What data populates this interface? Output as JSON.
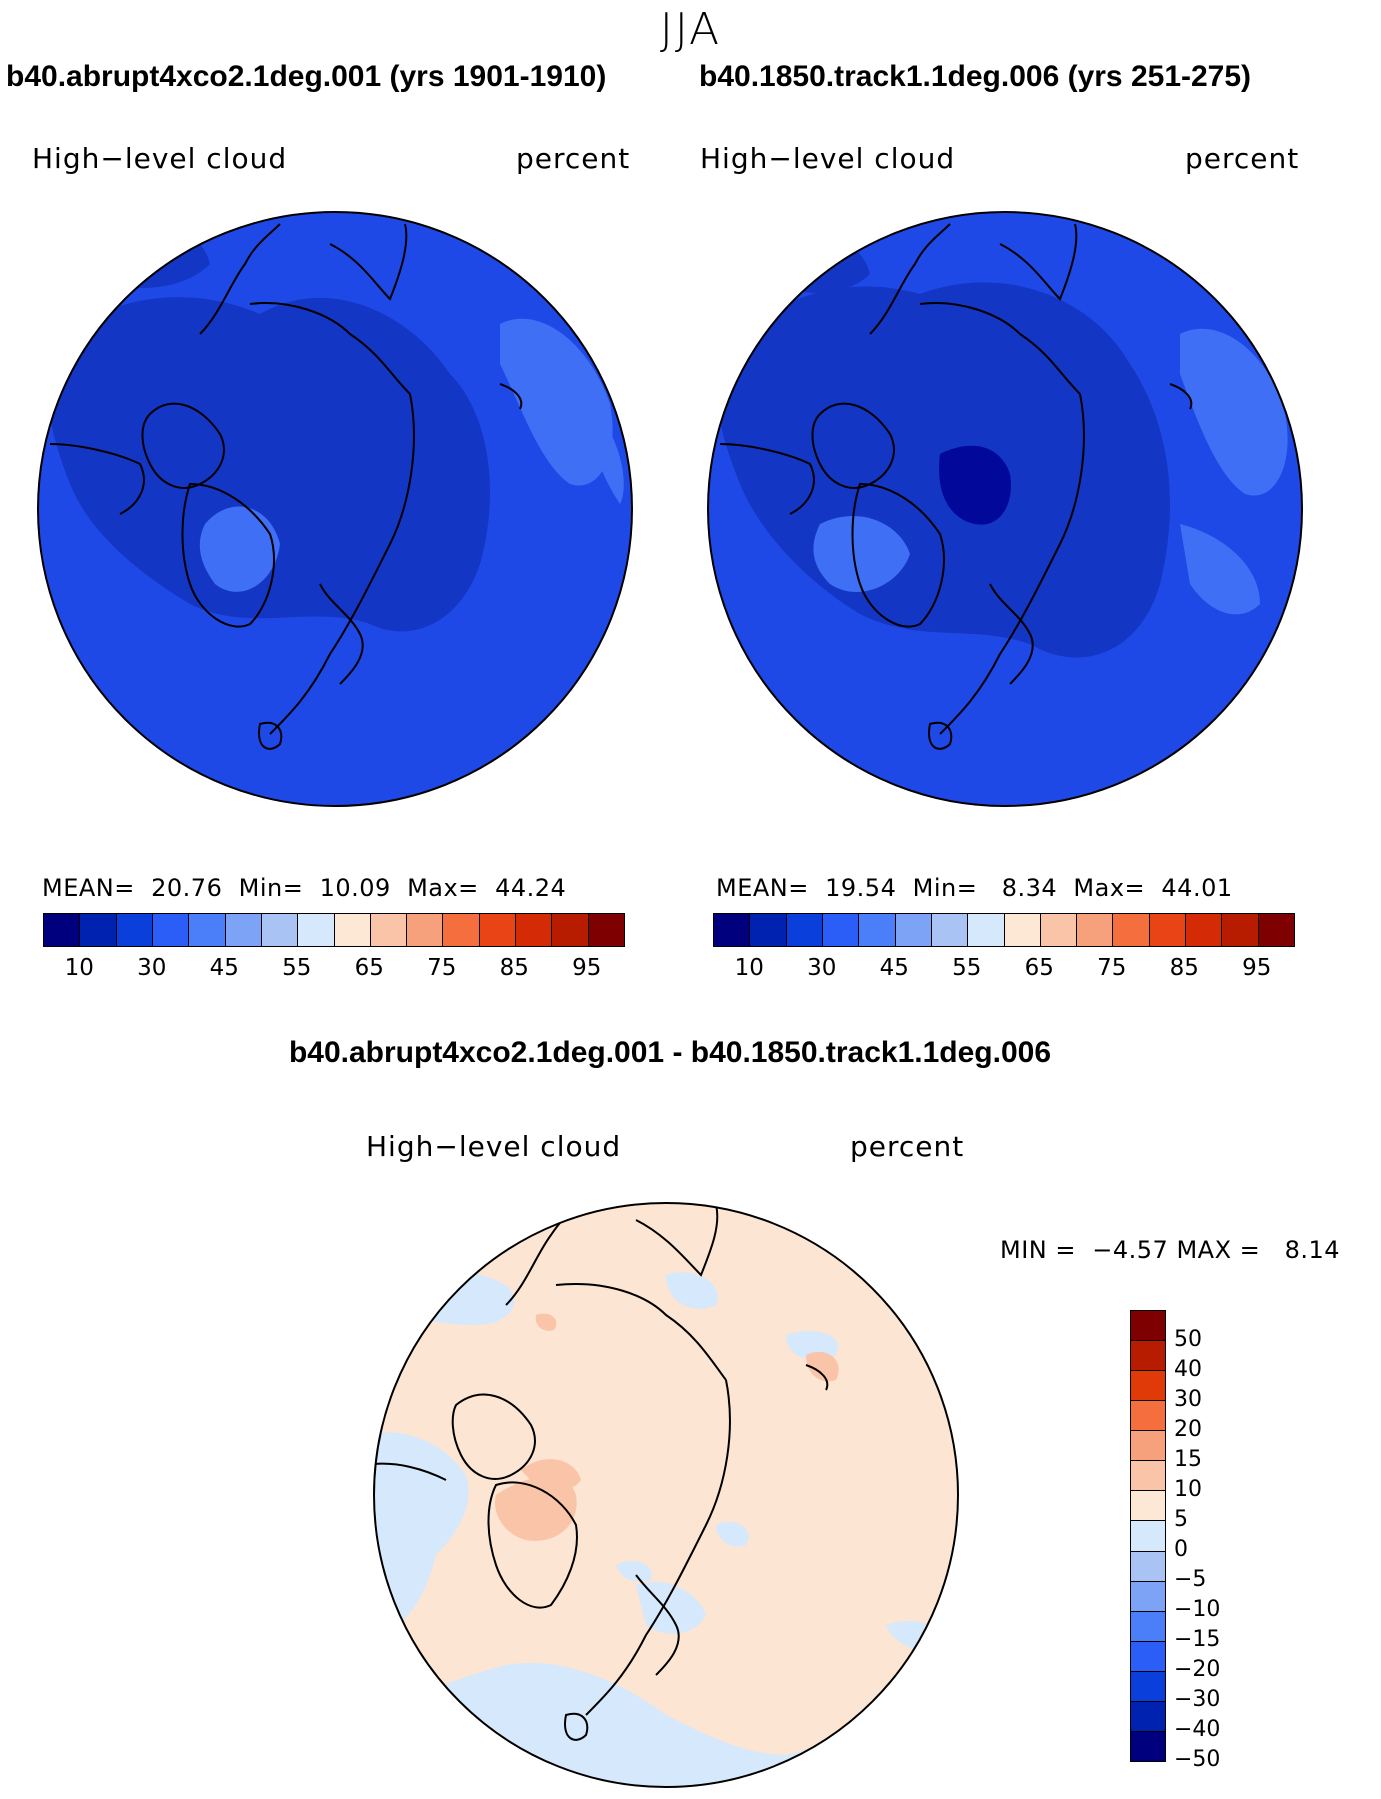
{
  "season": "JJA",
  "panels": [
    {
      "case_title": "b40.abrupt4xco2.1deg.001 (yrs 1901-1910)",
      "variable": "High−level cloud",
      "units": "percent",
      "stats": {
        "mean_label": "MEAN=",
        "mean": "20.76",
        "min_label": "Min=",
        "min": "10.09",
        "max_label": "Max=",
        "max": "44.24"
      }
    },
    {
      "case_title": "b40.1850.track1.1deg.006 (yrs 251-275)",
      "variable": "High−level cloud",
      "units": "percent",
      "stats": {
        "mean_label": "MEAN=",
        "mean": "19.54",
        "min_label": "Min=",
        "min": "8.34",
        "max_label": "Max=",
        "max": "44.01"
      }
    }
  ],
  "abs_colorbar": {
    "colors": [
      "#00007f",
      "#0022b0",
      "#0a3fdc",
      "#2b5ef7",
      "#4b7ef9",
      "#7da3f6",
      "#a9c3f5",
      "#d6e8fb",
      "#fde8d6",
      "#f9c4a8",
      "#f7a07c",
      "#f46e3e",
      "#e84416",
      "#d42a05",
      "#b71b00",
      "#7f0000"
    ],
    "labels": [
      "10",
      "30",
      "45",
      "55",
      "65",
      "75",
      "85",
      "95"
    ]
  },
  "diff": {
    "title": "b40.abrupt4xco2.1deg.001 - b40.1850.track1.1deg.006",
    "variable": "High−level cloud",
    "units": "percent",
    "stats": {
      "min_label": "MIN =",
      "min": "−4.57",
      "max_label": "MAX =",
      "max": "8.14"
    }
  },
  "diff_colorbar": {
    "colors": [
      "#7f0000",
      "#b71b00",
      "#e03a08",
      "#f46e3e",
      "#f7a07c",
      "#f9c4a8",
      "#fde8d6",
      "#d6e8fb",
      "#a9c3f5",
      "#7da3f6",
      "#4b7ef9",
      "#2b5ef7",
      "#0a3fdc",
      "#0022b0",
      "#00007f"
    ],
    "labels": [
      "50",
      "40",
      "30",
      "20",
      "15",
      "10",
      "5",
      "0",
      "−5",
      "−10",
      "−15",
      "−20",
      "−30",
      "−40",
      "−50"
    ]
  },
  "map_colors": {
    "abs_base": "#1f49e6",
    "abs_dark": "#1436c4",
    "abs_light": "#3e6ff5",
    "abs_darkest": "#02089a",
    "diff_base": "#fce5d3",
    "diff_neg": "#d6e8fb",
    "diff_pos": "#f9c4a8",
    "coast": "#000000"
  }
}
